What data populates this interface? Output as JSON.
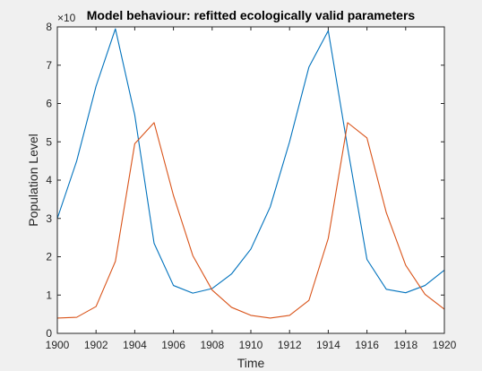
{
  "chart_data": {
    "type": "line",
    "title": "Model behaviour: refitted ecologically valid parameters",
    "xlabel": "Time",
    "ylabel": "Population Level",
    "y_exponent_label": "×10",
    "xlim": [
      1900,
      1920
    ],
    "ylim": [
      0,
      8
    ],
    "x_ticks": [
      1900,
      1902,
      1904,
      1906,
      1908,
      1910,
      1912,
      1914,
      1916,
      1918,
      1920
    ],
    "y_ticks": [
      0,
      1,
      2,
      3,
      4,
      5,
      6,
      7,
      8
    ],
    "grid": false,
    "x": [
      1900,
      1901,
      1902,
      1903,
      1904,
      1905,
      1906,
      1907,
      1908,
      1909,
      1910,
      1911,
      1912,
      1913,
      1914,
      1915,
      1916,
      1917,
      1918,
      1919,
      1920
    ],
    "series": [
      {
        "color": "#0072bd",
        "values": [
          3.0,
          4.5,
          6.45,
          7.95,
          5.7,
          2.35,
          1.25,
          1.05,
          1.17,
          1.55,
          2.2,
          3.3,
          5.0,
          6.95,
          7.9,
          4.85,
          1.93,
          1.15,
          1.06,
          1.25,
          1.65
        ]
      },
      {
        "color": "#d95319",
        "values": [
          0.4,
          0.42,
          0.7,
          1.88,
          4.95,
          5.5,
          3.6,
          2.03,
          1.13,
          0.68,
          0.47,
          0.4,
          0.47,
          0.86,
          2.48,
          5.5,
          5.1,
          3.15,
          1.78,
          1.02,
          0.63
        ]
      }
    ]
  }
}
